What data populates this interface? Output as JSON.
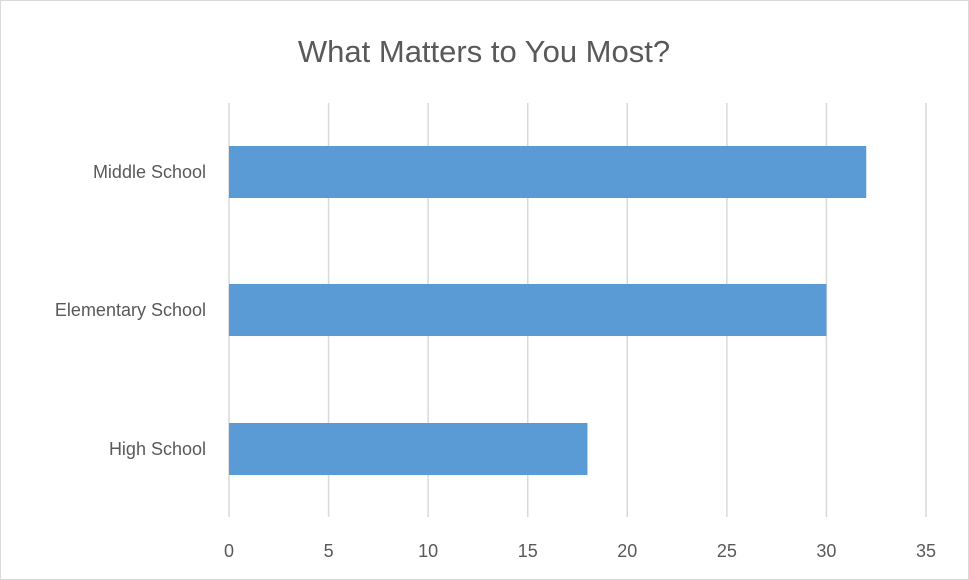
{
  "chart_data": {
    "type": "bar",
    "orientation": "horizontal",
    "title": "What Matters to You Most?",
    "xlabel": "",
    "ylabel": "",
    "categories": [
      "Middle School",
      "Elementary School",
      "High School"
    ],
    "values": [
      32,
      30,
      18
    ],
    "xlim": [
      0,
      35
    ],
    "xticks": [
      0,
      5,
      10,
      15,
      20,
      25,
      30,
      35
    ],
    "grid": true,
    "legend": "none",
    "bar_color": "#5b9bd5"
  }
}
